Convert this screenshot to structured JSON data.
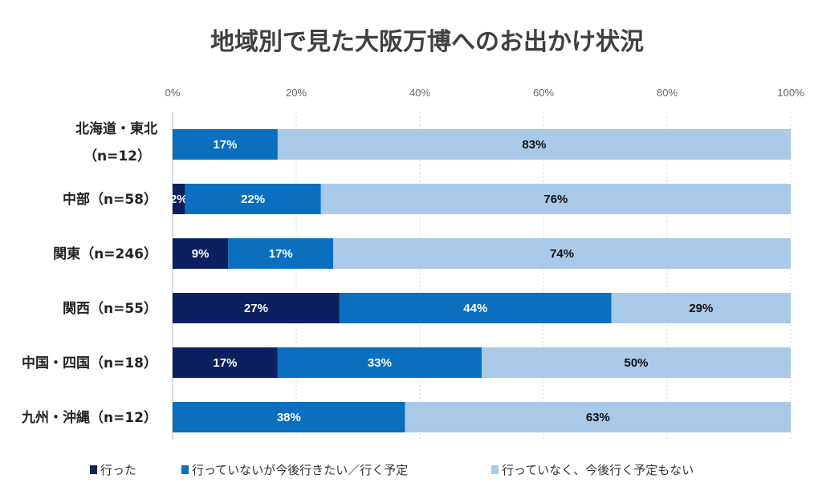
{
  "chart_data": {
    "type": "bar",
    "orientation": "horizontal",
    "stacked": "percent",
    "title": "地域別で見た大阪万博へのお出かけ状況",
    "categories": [
      "北海道・東北|（n=12）",
      "中部（n=58）",
      "関東（n=246）",
      "関西（n=55）",
      "中国・四国（n=18）",
      "九州・沖縄（n=12）"
    ],
    "xlim": [
      0,
      100
    ],
    "x_ticks": [
      "0%",
      "20%",
      "40%",
      "60%",
      "80%",
      "100%"
    ],
    "grid": true,
    "legend_position": "bottom",
    "series": [
      {
        "name": "行った",
        "color": "#0c1f5e",
        "values": [
          0,
          2,
          9,
          27,
          17,
          0
        ]
      },
      {
        "name": "行っていないが今後行きたい／行く予定",
        "color": "#0b6fbf",
        "values": [
          17,
          22,
          17,
          44,
          33,
          38
        ]
      },
      {
        "name": "行っていなく、今後行く予定もない",
        "color": "#a9c9e9",
        "values": [
          83,
          76,
          74,
          29,
          50,
          63
        ]
      }
    ],
    "label_colors": [
      "#ffffff",
      "#ffffff",
      "#111111"
    ]
  }
}
